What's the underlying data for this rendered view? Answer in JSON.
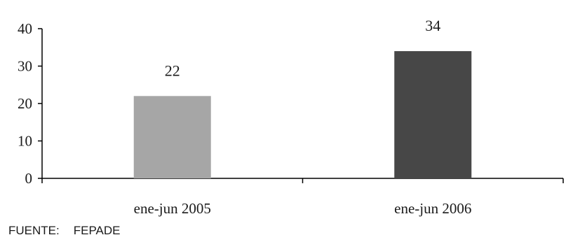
{
  "chart_data": {
    "type": "bar",
    "categories": [
      "ene-jun 2005",
      "ene-jun 2006"
    ],
    "values": [
      22,
      34
    ],
    "data_labels": [
      "22",
      "34"
    ],
    "colors": [
      "#a6a6a6",
      "#474747"
    ],
    "ylim": [
      0,
      40
    ],
    "yticks": [
      0,
      10,
      20,
      30,
      40
    ],
    "grid": false,
    "title": "",
    "xlabel": "",
    "ylabel": ""
  },
  "source": {
    "label": "FUENTE:",
    "value": "FEPADE"
  }
}
